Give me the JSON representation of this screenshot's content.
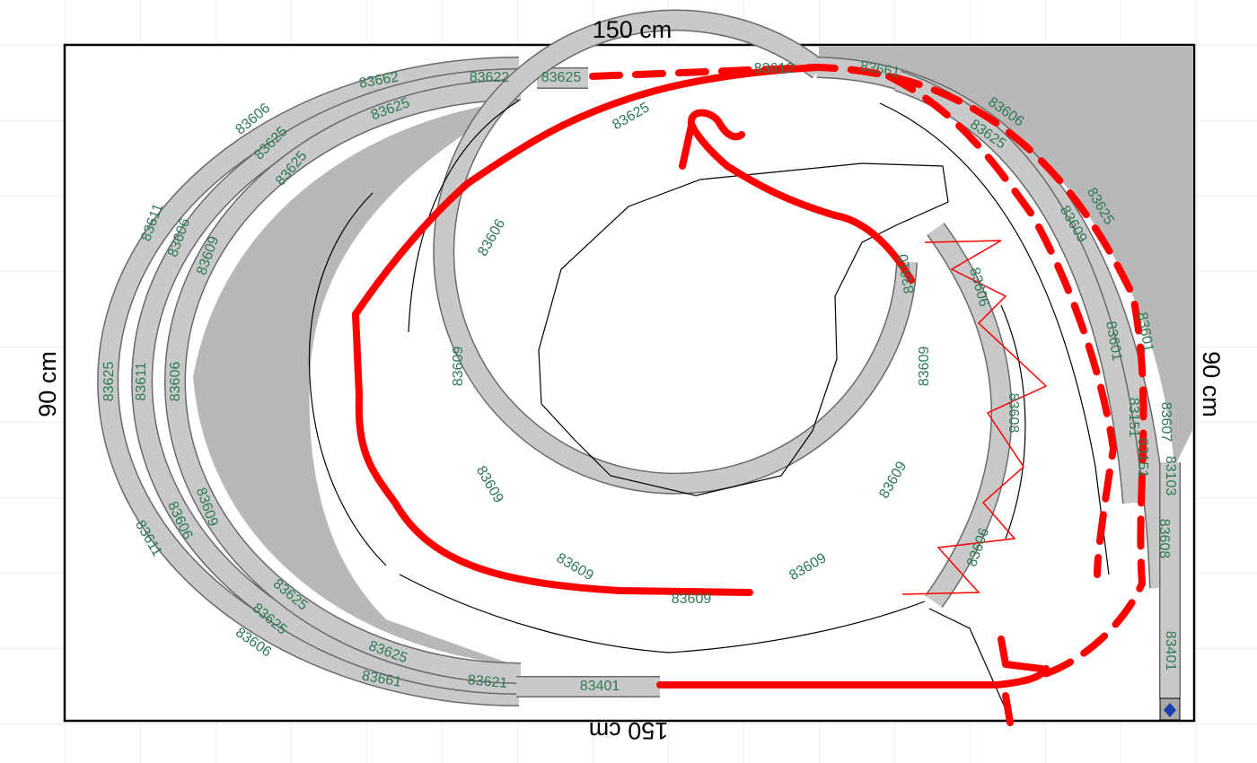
{
  "dimensions": {
    "top": "150 cm",
    "bottom": "150 cm",
    "left": "90 cm",
    "right": "90 cm"
  },
  "track_labels": [
    "83606",
    "83611",
    "83625",
    "83611",
    "83606",
    "83661",
    "83662",
    "83625",
    "83606",
    "83611",
    "83606",
    "83625",
    "83621",
    "83622",
    "83625",
    "83625",
    "83609",
    "83606",
    "83609",
    "83625",
    "83625",
    "83625",
    "83401",
    "83612",
    "83625",
    "83606",
    "83609",
    "83609",
    "83609",
    "83609",
    "83609",
    "83609",
    "83609",
    "83610",
    "83606",
    "83608",
    "83606",
    "83661",
    "83606",
    "83625",
    "83625",
    "83609",
    "83601",
    "83601",
    "83607",
    "83151",
    "83151",
    "83103",
    "83608",
    "83401"
  ]
}
